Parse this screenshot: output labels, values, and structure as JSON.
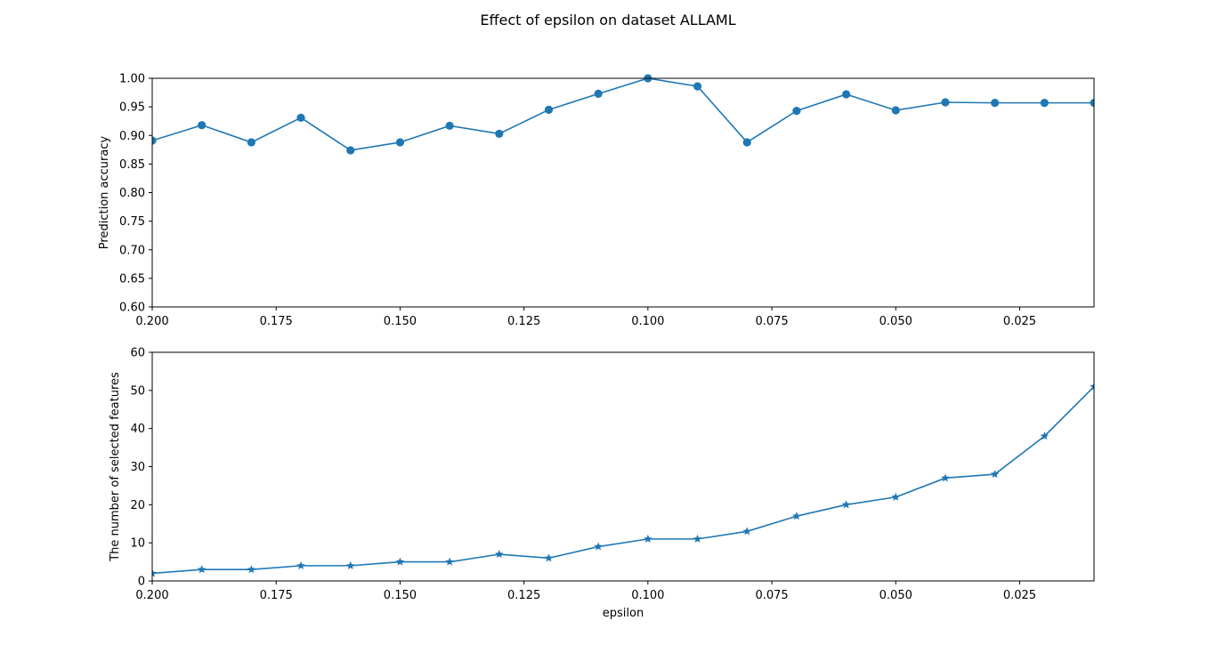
{
  "title": "Effect of epsilon on dataset ALLAML",
  "colors": {
    "series": "#1f77b4",
    "axes": "#000000"
  },
  "chart_data": [
    {
      "type": "line",
      "marker": "circle",
      "x": [
        0.2,
        0.19,
        0.18,
        0.17,
        0.16,
        0.15,
        0.14,
        0.13,
        0.12,
        0.11,
        0.1,
        0.09,
        0.08,
        0.07,
        0.06,
        0.05,
        0.04,
        0.03,
        0.02,
        0.01
      ],
      "values": [
        0.891,
        0.918,
        0.888,
        0.931,
        0.874,
        0.888,
        0.917,
        0.903,
        0.945,
        0.973,
        1.0,
        0.986,
        0.888,
        0.943,
        0.972,
        0.944,
        0.958,
        0.957,
        0.957,
        0.957
      ],
      "xlim": [
        0.2,
        0.01
      ],
      "ylim": [
        0.6,
        1.0
      ],
      "xticks": [
        0.2,
        0.175,
        0.15,
        0.125,
        0.1,
        0.075,
        0.05,
        0.025
      ],
      "xtick_labels": [
        "0.200",
        "0.175",
        "0.150",
        "0.125",
        "0.100",
        "0.075",
        "0.050",
        "0.025"
      ],
      "yticks": [
        0.6,
        0.65,
        0.7,
        0.75,
        0.8,
        0.85,
        0.9,
        0.95,
        1.0
      ],
      "ytick_labels": [
        "0.60",
        "0.65",
        "0.70",
        "0.75",
        "0.80",
        "0.85",
        "0.90",
        "0.95",
        "1.00"
      ],
      "xlabel": "",
      "ylabel": "Prediction accuracy",
      "grid": false
    },
    {
      "type": "line",
      "marker": "star",
      "x": [
        0.2,
        0.19,
        0.18,
        0.17,
        0.16,
        0.15,
        0.14,
        0.13,
        0.12,
        0.11,
        0.1,
        0.09,
        0.08,
        0.07,
        0.06,
        0.05,
        0.04,
        0.03,
        0.02,
        0.01
      ],
      "values": [
        2,
        3,
        3,
        4,
        4,
        5,
        5,
        7,
        6,
        9,
        11,
        11,
        13,
        17,
        20,
        22,
        27,
        28,
        38,
        51
      ],
      "xlim": [
        0.2,
        0.01
      ],
      "ylim": [
        0,
        60
      ],
      "xticks": [
        0.2,
        0.175,
        0.15,
        0.125,
        0.1,
        0.075,
        0.05,
        0.025
      ],
      "xtick_labels": [
        "0.200",
        "0.175",
        "0.150",
        "0.125",
        "0.100",
        "0.075",
        "0.050",
        "0.025"
      ],
      "yticks": [
        0,
        10,
        20,
        30,
        40,
        50,
        60
      ],
      "ytick_labels": [
        "0",
        "10",
        "20",
        "30",
        "40",
        "50",
        "60"
      ],
      "xlabel": "epsilon",
      "ylabel": "The number of selected features",
      "grid": false
    }
  ]
}
